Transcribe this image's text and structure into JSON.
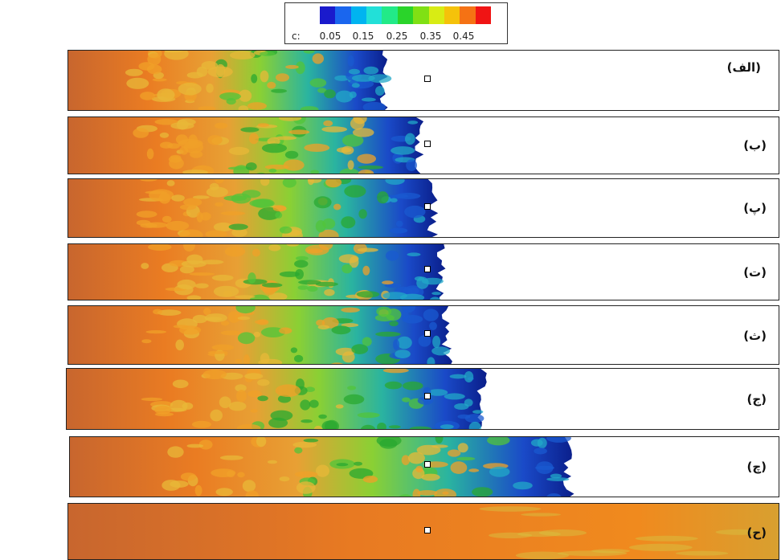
{
  "legend": {
    "variable": "c:",
    "ticks": [
      "0.05",
      "0.15",
      "0.25",
      "0.35",
      "0.45"
    ],
    "colors": [
      "#1a1acc",
      "#1a66ee",
      "#00b4f0",
      "#22e0d8",
      "#22ea88",
      "#2ad42a",
      "#80e014",
      "#d8ec14",
      "#f5c20a",
      "#f57214",
      "#f01414"
    ]
  },
  "panels": [
    {
      "label": "(الف)",
      "front": 0.45
    },
    {
      "label": "(ب)",
      "front": 0.5
    },
    {
      "label": "(پ)",
      "front": 0.52
    },
    {
      "label": "(ت)",
      "front": 0.53
    },
    {
      "label": "(ث)",
      "front": 0.54
    },
    {
      "label": "(ج)",
      "front": 0.59
    },
    {
      "label": "(چ)",
      "front": 0.71
    },
    {
      "label": "(ح)",
      "front": 1.0
    }
  ]
}
